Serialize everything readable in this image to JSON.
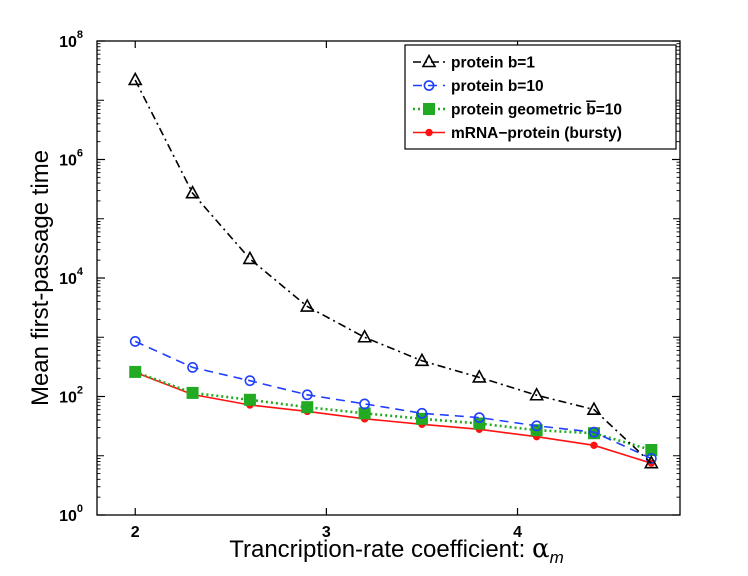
{
  "chart_data": {
    "type": "line",
    "xlabel": "Trancription-rate coefficient: ",
    "xlabel_symbol": "α",
    "xlabel_subscript": "m",
    "ylabel": "Mean first-passage time",
    "yscale": "log",
    "xlim": [
      1.8,
      4.85
    ],
    "ylim": [
      1,
      100000000
    ],
    "x_ticks": [
      2,
      3,
      4
    ],
    "y_ticks": [
      {
        "value": 1,
        "base": "10",
        "exp": "0"
      },
      {
        "value": 100,
        "base": "10",
        "exp": "2"
      },
      {
        "value": 10000,
        "base": "10",
        "exp": "4"
      },
      {
        "value": 1000000,
        "base": "10",
        "exp": "6"
      },
      {
        "value": 100000000,
        "base": "10",
        "exp": "8"
      }
    ],
    "x": [
      2.0,
      2.3,
      2.6,
      2.9,
      3.2,
      3.5,
      3.8,
      4.1,
      4.4,
      4.7
    ],
    "legend_position": "top-right",
    "series": [
      {
        "name": "protein b=1",
        "color": "#000000",
        "marker": "triangle",
        "dash": "8,4,2,4",
        "values": [
          22000000,
          270000,
          21000,
          3300,
          1000,
          400,
          210,
          105,
          60,
          7.5
        ]
      },
      {
        "name": "protein  b=10",
        "color": "#1f3fff",
        "marker": "circle",
        "dash": "9,6",
        "values": [
          850,
          310,
          185,
          107,
          75,
          52,
          44,
          32,
          25,
          9
        ]
      },
      {
        "name": "protein geometric b=10",
        "name_prefix": "protein geometric ",
        "name_overbar": "b",
        "name_suffix": "=10",
        "color": "#22aa22",
        "marker": "square",
        "dash": "2,3",
        "values": [
          260,
          115,
          88,
          66,
          52,
          42,
          35,
          27,
          24,
          12.5
        ]
      },
      {
        "name": "mRNA−protein (bursty)",
        "color": "#ff1111",
        "marker": "dot",
        "dash": "",
        "values": [
          255,
          108,
          72,
          56,
          42,
          34,
          28,
          21,
          15,
          7.5
        ]
      }
    ]
  }
}
